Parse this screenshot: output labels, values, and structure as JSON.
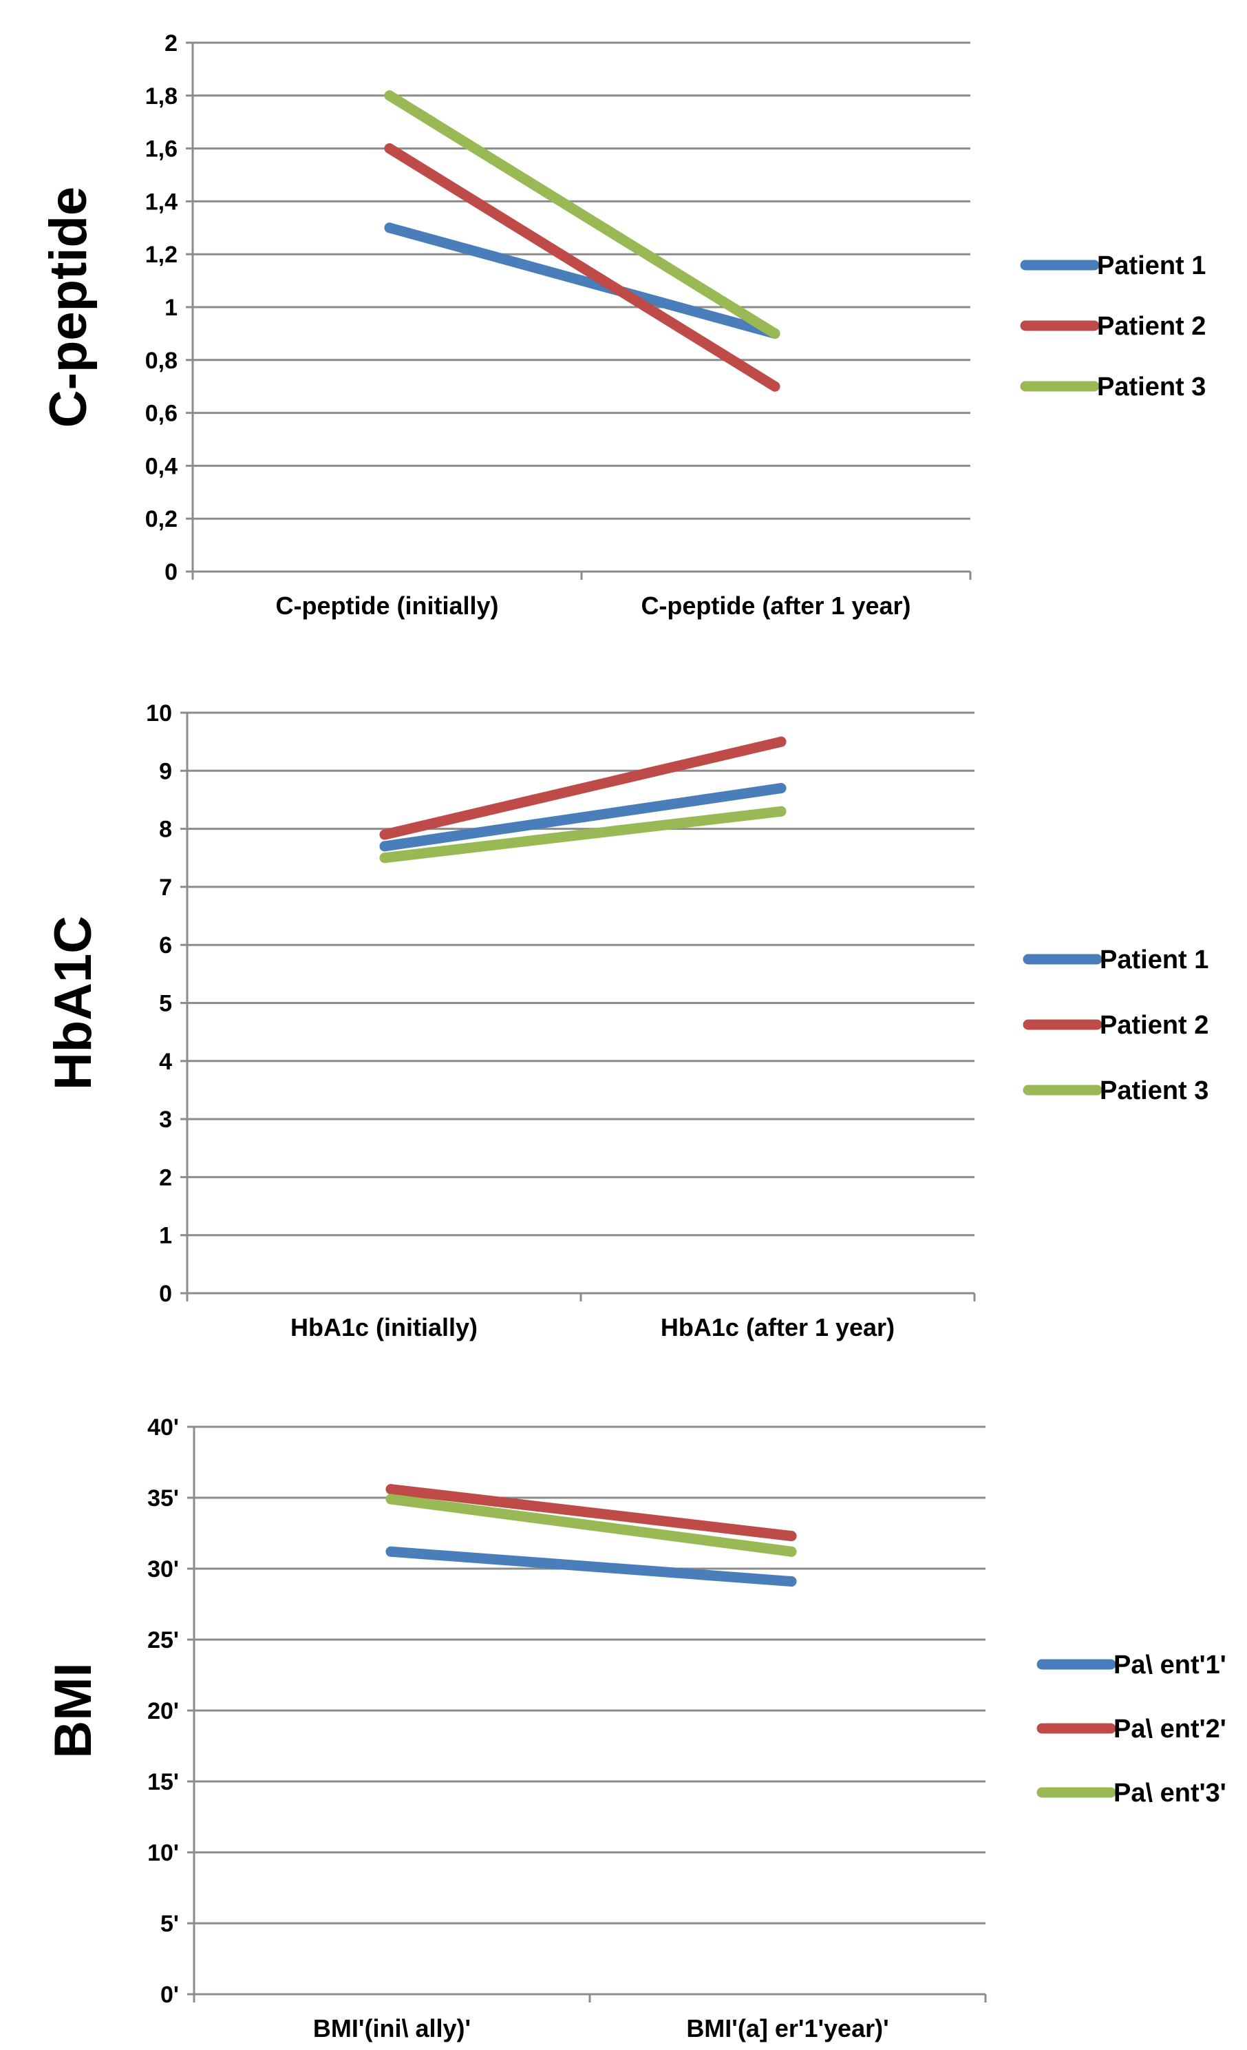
{
  "chart_data": [
    {
      "type": "line",
      "title": "",
      "xlabel": "",
      "ylabel": "C-peptide",
      "categories": [
        "C-peptide (initially)",
        "C-peptide (after 1 year)"
      ],
      "ylim": [
        0,
        2
      ],
      "yticks": [
        "0",
        "0,2",
        "0,4",
        "0,6",
        "0,8",
        "1",
        "1,2",
        "1,4",
        "1,6",
        "1,8",
        "2"
      ],
      "grid": true,
      "legend_position": "right",
      "series": [
        {
          "name": "Patient 1",
          "color": "#4a7ebb",
          "values": [
            1.3,
            0.9
          ]
        },
        {
          "name": "Patient 2",
          "color": "#be4b48",
          "values": [
            1.6,
            0.7
          ]
        },
        {
          "name": "Patient 3",
          "color": "#98b954",
          "values": [
            1.8,
            0.9
          ]
        }
      ]
    },
    {
      "type": "line",
      "title": "",
      "xlabel": "",
      "ylabel": "HbA1C",
      "categories": [
        "HbA1c (initially)",
        "HbA1c (after 1 year)"
      ],
      "ylim": [
        0,
        10
      ],
      "yticks": [
        "0",
        "1",
        "2",
        "3",
        "4",
        "5",
        "6",
        "7",
        "8",
        "9",
        "10"
      ],
      "grid": true,
      "legend_position": "right",
      "series": [
        {
          "name": "Patient 1",
          "color": "#4a7ebb",
          "values": [
            7.7,
            8.7
          ]
        },
        {
          "name": "Patient 2",
          "color": "#be4b48",
          "values": [
            7.9,
            9.5
          ]
        },
        {
          "name": "Patient 3",
          "color": "#98b954",
          "values": [
            7.5,
            8.3
          ]
        }
      ]
    },
    {
      "type": "line",
      "title": "",
      "xlabel": "",
      "ylabel": "BMI",
      "categories": [
        "BMI'(ini\\ ally)'",
        "BMI'(a] er'1'year)'"
      ],
      "ylim": [
        0,
        40
      ],
      "yticks": [
        "0'",
        "5'",
        "10'",
        "15'",
        "20'",
        "25'",
        "30'",
        "35'",
        "40'"
      ],
      "grid": true,
      "legend_position": "right",
      "series": [
        {
          "name": "Pa\\ ent'1'",
          "color": "#4a7ebb",
          "values": [
            31.2,
            29.1
          ]
        },
        {
          "name": "Pa\\ ent'2'",
          "color": "#be4b48",
          "values": [
            35.6,
            32.3
          ]
        },
        {
          "name": "Pa\\ ent'3'",
          "color": "#98b954",
          "values": [
            34.9,
            31.2
          ]
        }
      ]
    }
  ]
}
